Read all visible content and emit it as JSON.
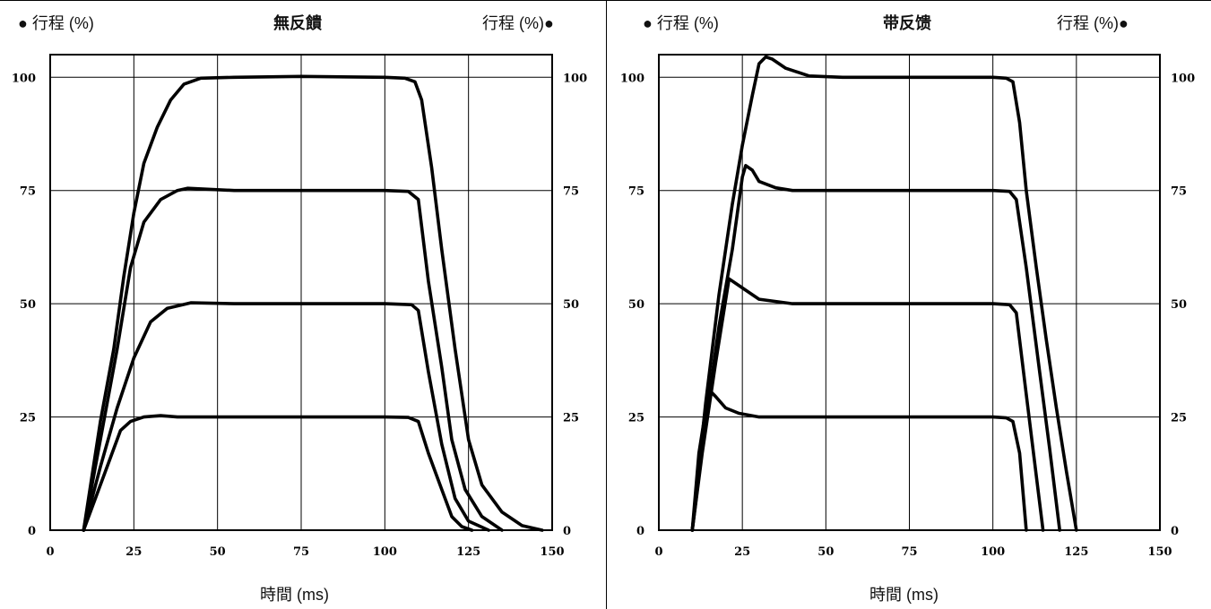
{
  "colors": {
    "line": "#000000",
    "grid": "#000000",
    "background": "#ffffff"
  },
  "chart_data": [
    {
      "type": "line",
      "title": "無反饋",
      "left_label": "● 行程 (%)",
      "right_label": "行程 (%)●",
      "xlabel": "時間 (ms)",
      "ylabel": "行程 (%)",
      "xlim": [
        0,
        150
      ],
      "ylim": [
        0,
        105
      ],
      "xticks": [
        "0",
        "25",
        "50",
        "75",
        "100",
        "125",
        "150"
      ],
      "yticks": [
        "0",
        "25",
        "50",
        "75",
        "100"
      ],
      "grid": true,
      "series": [
        {
          "points": [
            [
              10,
              0
            ],
            [
              14,
              8
            ],
            [
              18,
              16
            ],
            [
              21,
              22
            ],
            [
              24,
              24
            ],
            [
              28,
              25
            ],
            [
              33,
              25.3
            ],
            [
              38,
              25
            ],
            [
              50,
              25
            ],
            [
              75,
              25
            ],
            [
              100,
              25
            ],
            [
              107,
              24.9
            ],
            [
              110,
              24
            ],
            [
              113,
              17
            ],
            [
              117,
              9
            ],
            [
              120,
              3
            ],
            [
              123,
              0.8
            ],
            [
              126,
              0
            ]
          ]
        },
        {
          "points": [
            [
              10,
              0
            ],
            [
              15,
              14
            ],
            [
              20,
              27
            ],
            [
              25,
              38
            ],
            [
              30,
              46
            ],
            [
              35,
              49
            ],
            [
              42,
              50.2
            ],
            [
              55,
              50
            ],
            [
              75,
              50
            ],
            [
              100,
              50
            ],
            [
              108,
              49.8
            ],
            [
              110,
              48.5
            ],
            [
              113,
              35
            ],
            [
              117,
              19
            ],
            [
              121,
              7
            ],
            [
              125,
              2
            ],
            [
              131,
              0
            ]
          ]
        },
        {
          "points": [
            [
              10,
              0
            ],
            [
              15,
              20
            ],
            [
              20,
              40
            ],
            [
              24,
              58
            ],
            [
              28,
              68
            ],
            [
              33,
              73
            ],
            [
              38,
              75
            ],
            [
              41,
              75.5
            ],
            [
              55,
              75
            ],
            [
              80,
              75
            ],
            [
              100,
              75
            ],
            [
              107,
              74.8
            ],
            [
              110,
              73
            ],
            [
              113,
              55
            ],
            [
              117,
              36
            ],
            [
              120,
              20
            ],
            [
              124,
              9
            ],
            [
              129,
              3
            ],
            [
              135,
              0
            ]
          ]
        },
        {
          "points": [
            [
              10,
              0
            ],
            [
              15,
              24
            ],
            [
              19,
              40
            ],
            [
              22,
              56
            ],
            [
              25,
              70
            ],
            [
              28,
              81
            ],
            [
              32,
              89
            ],
            [
              36,
              95
            ],
            [
              40,
              98.5
            ],
            [
              45,
              99.8
            ],
            [
              55,
              100
            ],
            [
              75,
              100.2
            ],
            [
              100,
              100
            ],
            [
              106,
              99.8
            ],
            [
              109,
              99
            ],
            [
              111,
              95
            ],
            [
              114,
              80
            ],
            [
              117,
              62
            ],
            [
              121,
              40
            ],
            [
              125,
              20
            ],
            [
              129,
              10
            ],
            [
              135,
              4
            ],
            [
              141,
              1
            ],
            [
              147,
              0
            ]
          ]
        }
      ]
    },
    {
      "type": "line",
      "title": "带反馈",
      "left_label": "● 行程 (%)",
      "right_label": "行程 (%)●",
      "xlabel": "時間 (ms)",
      "ylabel": "行程 (%)",
      "xlim": [
        0,
        150
      ],
      "ylim": [
        0,
        105
      ],
      "xticks": [
        "0",
        "25",
        "50",
        "75",
        "100",
        "125",
        "150"
      ],
      "yticks": [
        "0",
        "25",
        "50",
        "75",
        "100"
      ],
      "grid": true,
      "series": [
        {
          "points": [
            [
              10,
              0
            ],
            [
              12,
              17
            ],
            [
              15,
              31
            ],
            [
              17,
              29.5
            ],
            [
              20,
              27
            ],
            [
              24,
              25.8
            ],
            [
              30,
              25
            ],
            [
              50,
              25
            ],
            [
              75,
              25
            ],
            [
              100,
              25
            ],
            [
              104,
              24.8
            ],
            [
              106,
              24
            ],
            [
              108,
              17
            ],
            [
              110,
              0
            ]
          ]
        },
        {
          "points": [
            [
              10,
              0
            ],
            [
              13,
              17
            ],
            [
              17,
              37
            ],
            [
              21,
              55.5
            ],
            [
              24,
              54
            ],
            [
              26,
              53
            ],
            [
              30,
              51
            ],
            [
              40,
              50
            ],
            [
              75,
              50
            ],
            [
              100,
              50
            ],
            [
              105,
              49.8
            ],
            [
              107,
              48
            ],
            [
              110,
              30
            ],
            [
              113,
              12
            ],
            [
              115,
              0
            ]
          ]
        },
        {
          "points": [
            [
              10,
              0
            ],
            [
              14,
              24
            ],
            [
              18,
              45
            ],
            [
              22,
              62
            ],
            [
              25,
              78
            ],
            [
              26,
              80.5
            ],
            [
              28,
              79.5
            ],
            [
              30,
              77
            ],
            [
              35,
              75.6
            ],
            [
              40,
              75
            ],
            [
              75,
              75
            ],
            [
              100,
              75
            ],
            [
              105,
              74.8
            ],
            [
              107,
              73
            ],
            [
              110,
              58
            ],
            [
              114,
              35
            ],
            [
              117,
              18
            ],
            [
              120,
              0
            ]
          ]
        },
        {
          "points": [
            [
              10,
              0
            ],
            [
              14,
              28
            ],
            [
              18,
              52
            ],
            [
              22,
              72
            ],
            [
              25,
              85
            ],
            [
              28,
              96
            ],
            [
              30,
              103
            ],
            [
              32,
              104.5
            ],
            [
              34,
              104
            ],
            [
              38,
              102
            ],
            [
              45,
              100.3
            ],
            [
              55,
              100
            ],
            [
              75,
              100
            ],
            [
              100,
              100
            ],
            [
              104,
              99.8
            ],
            [
              106,
              99
            ],
            [
              108,
              90
            ],
            [
              110,
              75
            ],
            [
              113,
              58
            ],
            [
              116,
              42
            ],
            [
              119,
              27
            ],
            [
              122,
              13
            ],
            [
              125,
              0
            ]
          ]
        }
      ]
    }
  ]
}
